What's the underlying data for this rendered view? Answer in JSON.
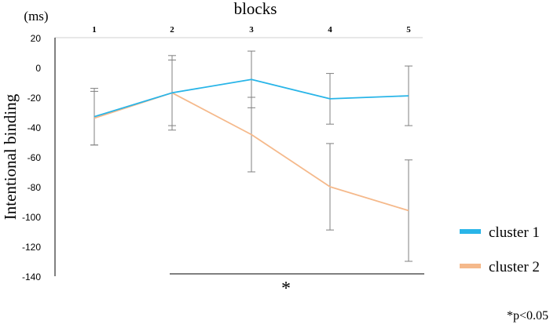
{
  "chart_data": {
    "type": "line",
    "x_title": "blocks",
    "y_unit": "(ms)",
    "ylabel": "Intentional binding",
    "categories": [
      "1",
      "2",
      "3",
      "4",
      "5"
    ],
    "ylim": [
      -140,
      20
    ],
    "yticks": [
      20,
      0,
      -20,
      -40,
      -60,
      -80,
      -100,
      -120,
      -140
    ],
    "grid": false,
    "legend_position": "right",
    "series": [
      {
        "name": "cluster 1",
        "color": "#29b5e8",
        "values": [
          -33,
          -17,
          -8,
          -21,
          -19
        ],
        "error": [
          19,
          22,
          19,
          17,
          20
        ]
      },
      {
        "name": "cluster 2",
        "color": "#f5b98b",
        "values": [
          -34,
          -17,
          -45,
          -80,
          -96
        ],
        "error": [
          18,
          25,
          25,
          29,
          34
        ]
      }
    ],
    "significance": {
      "marker": "*",
      "span": [
        "2",
        "5"
      ],
      "note": "*p<0.05"
    }
  }
}
